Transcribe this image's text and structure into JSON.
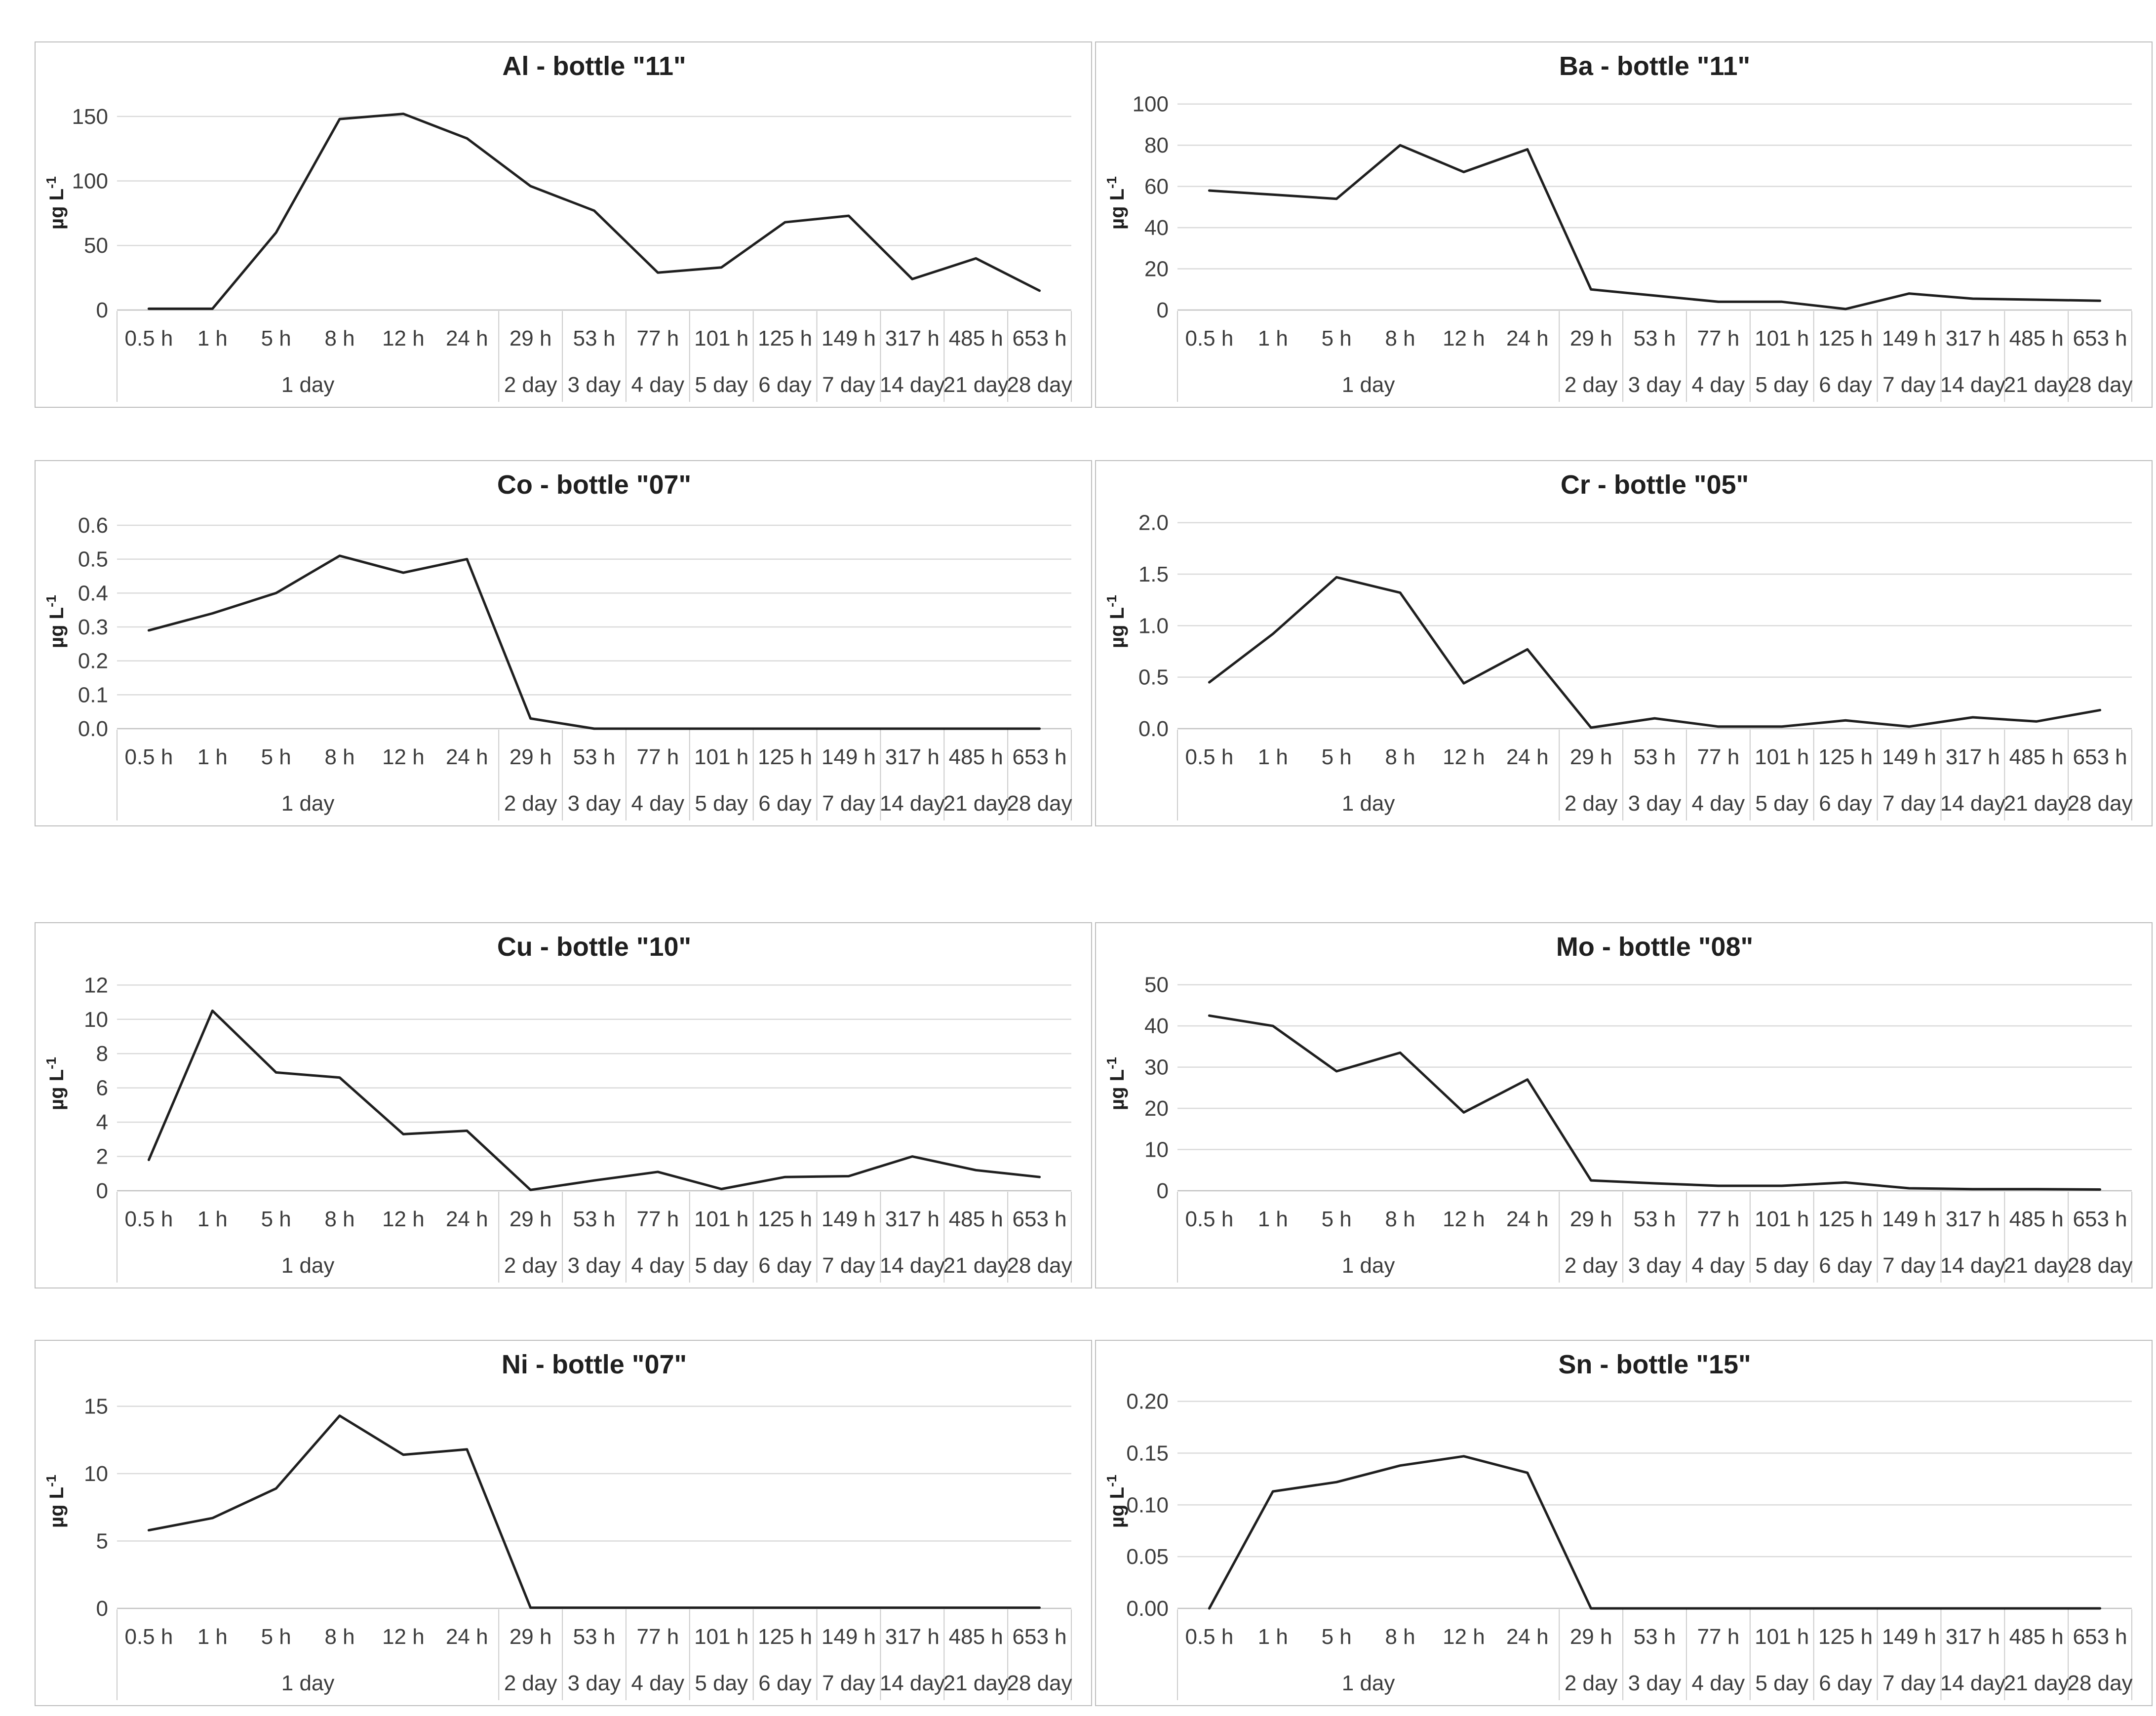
{
  "style": {
    "background": "#ffffff",
    "panel_border_color": "#bdbdbd",
    "line_color": "#1f1f1f",
    "grid_color": "#dadada",
    "axis_line_color": "#c2c2c2",
    "separator_color": "#cccccc",
    "tick_text_color": "#3d3d3d",
    "title_color": "#1f1f1f"
  },
  "axis_shared": {
    "unit_label": "µg L⁻¹",
    "hour_tier_labels": [
      "0.5 h",
      "1 h",
      "5 h",
      "8 h",
      "12 h",
      "24 h",
      "29 h",
      "53 h",
      "77 h",
      "101 h",
      "125 h",
      "149 h",
      "317 h",
      "485 h",
      "653 h"
    ],
    "day_tier_labels": [
      "1 day",
      "2 day",
      "3 day",
      "4 day",
      "5 day",
      "6 day",
      "7 day",
      "14 day",
      "21 day",
      "28 day"
    ]
  },
  "chart_data": [
    {
      "id": "al-bottle-11",
      "type": "line",
      "title": "Al - bottle \"11\"",
      "ylabel": "µg L⁻¹",
      "categories": [
        "0.5 h",
        "1 h",
        "5 h",
        "8 h",
        "12 h",
        "24 h",
        "29 h",
        "53 h",
        "77 h",
        "101 h",
        "125 h",
        "149 h",
        "317 h",
        "485 h",
        "653 h"
      ],
      "categories_tier2": [
        {
          "label": "1 day",
          "span": 6
        },
        {
          "label": "2 day",
          "span": 1
        },
        {
          "label": "3 day",
          "span": 1
        },
        {
          "label": "4 day",
          "span": 1
        },
        {
          "label": "5 day",
          "span": 1
        },
        {
          "label": "6 day",
          "span": 1
        },
        {
          "label": "7 day",
          "span": 1
        },
        {
          "label": "14 day",
          "span": 1
        },
        {
          "label": "21 day",
          "span": 1
        },
        {
          "label": "28 day",
          "span": 1
        }
      ],
      "values": [
        1,
        1,
        60,
        148,
        152,
        133,
        96,
        77,
        29,
        33,
        68,
        73,
        24,
        40,
        15
      ],
      "yticks": [
        0,
        50,
        100,
        150
      ],
      "ytick_labels": [
        "0",
        "50",
        "100",
        "150"
      ],
      "ylim": [
        0,
        166
      ],
      "grid": true,
      "legend": "none"
    },
    {
      "id": "ba-bottle-11",
      "type": "line",
      "title": "Ba - bottle \"11\"",
      "ylabel": "µg L⁻¹",
      "categories": [
        "0.5 h",
        "1 h",
        "5 h",
        "8 h",
        "12 h",
        "24 h",
        "29 h",
        "53 h",
        "77 h",
        "101 h",
        "125 h",
        "149 h",
        "317 h",
        "485 h",
        "653 h"
      ],
      "categories_tier2": [
        {
          "label": "1 day",
          "span": 6
        },
        {
          "label": "2 day",
          "span": 1
        },
        {
          "label": "3 day",
          "span": 1
        },
        {
          "label": "4 day",
          "span": 1
        },
        {
          "label": "5 day",
          "span": 1
        },
        {
          "label": "6 day",
          "span": 1
        },
        {
          "label": "7 day",
          "span": 1
        },
        {
          "label": "14 day",
          "span": 1
        },
        {
          "label": "21 day",
          "span": 1
        },
        {
          "label": "28 day",
          "span": 1
        }
      ],
      "values": [
        58,
        56,
        54,
        80,
        67,
        78,
        10,
        7,
        4,
        4,
        0.5,
        8,
        5.5,
        5,
        4.5
      ],
      "yticks": [
        0,
        20,
        40,
        60,
        80,
        100
      ],
      "ytick_labels": [
        "0",
        "20",
        "40",
        "60",
        "80",
        "100"
      ],
      "ylim": [
        0,
        104
      ],
      "grid": true,
      "legend": "none"
    },
    {
      "id": "co-bottle-07",
      "type": "line",
      "title": "Co - bottle \"07\"",
      "ylabel": "µg L⁻¹",
      "categories": [
        "0.5 h",
        "1 h",
        "5 h",
        "8 h",
        "12 h",
        "24 h",
        "29 h",
        "53 h",
        "77 h",
        "101 h",
        "125 h",
        "149 h",
        "317 h",
        "485 h",
        "653 h"
      ],
      "categories_tier2": [
        {
          "label": "1 day",
          "span": 6
        },
        {
          "label": "2 day",
          "span": 1
        },
        {
          "label": "3 day",
          "span": 1
        },
        {
          "label": "4 day",
          "span": 1
        },
        {
          "label": "5 day",
          "span": 1
        },
        {
          "label": "6 day",
          "span": 1
        },
        {
          "label": "7 day",
          "span": 1
        },
        {
          "label": "14 day",
          "span": 1
        },
        {
          "label": "21 day",
          "span": 1
        },
        {
          "label": "28 day",
          "span": 1
        }
      ],
      "values": [
        0.29,
        0.34,
        0.4,
        0.51,
        0.46,
        0.5,
        0.03,
        0,
        0,
        0,
        0,
        0,
        0,
        0,
        0
      ],
      "yticks": [
        0.0,
        0.1,
        0.2,
        0.3,
        0.4,
        0.5,
        0.6
      ],
      "ytick_labels": [
        "0.0",
        "0.1",
        "0.2",
        "0.3",
        "0.4",
        "0.5",
        "0.6"
      ],
      "ylim": [
        0,
        0.632
      ],
      "grid": true,
      "legend": "none"
    },
    {
      "id": "cr-bottle-05",
      "type": "line",
      "title": "Cr - bottle \"05\"",
      "ylabel": "µg L⁻¹",
      "categories": [
        "0.5 h",
        "1 h",
        "5 h",
        "8 h",
        "12 h",
        "24 h",
        "29 h",
        "53 h",
        "77 h",
        "101 h",
        "125 h",
        "149 h",
        "317 h",
        "485 h",
        "653 h"
      ],
      "categories_tier2": [
        {
          "label": "1 day",
          "span": 6
        },
        {
          "label": "2 day",
          "span": 1
        },
        {
          "label": "3 day",
          "span": 1
        },
        {
          "label": "4 day",
          "span": 1
        },
        {
          "label": "5 day",
          "span": 1
        },
        {
          "label": "6 day",
          "span": 1
        },
        {
          "label": "7 day",
          "span": 1
        },
        {
          "label": "14 day",
          "span": 1
        },
        {
          "label": "21 day",
          "span": 1
        },
        {
          "label": "28 day",
          "span": 1
        }
      ],
      "values": [
        0.45,
        0.92,
        1.47,
        1.32,
        0.44,
        0.77,
        0.01,
        0.1,
        0.02,
        0.02,
        0.08,
        0.02,
        0.11,
        0.07,
        0.18
      ],
      "yticks": [
        0.0,
        0.5,
        1.0,
        1.5,
        2.0
      ],
      "ytick_labels": [
        "0.0",
        "0.5",
        "1.0",
        "1.5",
        "2.0"
      ],
      "ylim": [
        0,
        2.08
      ],
      "grid": true,
      "legend": "none"
    },
    {
      "id": "cu-bottle-10",
      "type": "line",
      "title": "Cu - bottle \"10\"",
      "ylabel": "µg L⁻¹",
      "categories": [
        "0.5 h",
        "1 h",
        "5 h",
        "8 h",
        "12 h",
        "24 h",
        "29 h",
        "53 h",
        "77 h",
        "101 h",
        "125 h",
        "149 h",
        "317 h",
        "485 h",
        "653 h"
      ],
      "categories_tier2": [
        {
          "label": "1 day",
          "span": 6
        },
        {
          "label": "2 day",
          "span": 1
        },
        {
          "label": "3 day",
          "span": 1
        },
        {
          "label": "4 day",
          "span": 1
        },
        {
          "label": "5 day",
          "span": 1
        },
        {
          "label": "6 day",
          "span": 1
        },
        {
          "label": "7 day",
          "span": 1
        },
        {
          "label": "14 day",
          "span": 1
        },
        {
          "label": "21 day",
          "span": 1
        },
        {
          "label": "28 day",
          "span": 1
        }
      ],
      "values": [
        1.8,
        10.5,
        6.9,
        6.6,
        3.3,
        3.5,
        0.05,
        0.6,
        1.1,
        0.1,
        0.8,
        0.85,
        2.0,
        1.2,
        0.8
      ],
      "yticks": [
        0,
        2,
        4,
        6,
        8,
        10,
        12
      ],
      "ytick_labels": [
        "0",
        "2",
        "4",
        "6",
        "8",
        "10",
        "12"
      ],
      "ylim": [
        0,
        12.5
      ],
      "grid": true,
      "legend": "none"
    },
    {
      "id": "mo-bottle-08",
      "type": "line",
      "title": "Mo - bottle \"08\"",
      "ylabel": "µg L⁻¹",
      "categories": [
        "0.5 h",
        "1 h",
        "5 h",
        "8 h",
        "12 h",
        "24 h",
        "29 h",
        "53 h",
        "77 h",
        "101 h",
        "125 h",
        "149 h",
        "317 h",
        "485 h",
        "653 h"
      ],
      "categories_tier2": [
        {
          "label": "1 day",
          "span": 6
        },
        {
          "label": "2 day",
          "span": 1
        },
        {
          "label": "3 day",
          "span": 1
        },
        {
          "label": "4 day",
          "span": 1
        },
        {
          "label": "5 day",
          "span": 1
        },
        {
          "label": "6 day",
          "span": 1
        },
        {
          "label": "7 day",
          "span": 1
        },
        {
          "label": "14 day",
          "span": 1
        },
        {
          "label": "21 day",
          "span": 1
        },
        {
          "label": "28 day",
          "span": 1
        }
      ],
      "values": [
        42.5,
        40,
        29,
        33.5,
        19,
        27,
        2.5,
        1.8,
        1.2,
        1.2,
        2.0,
        0.6,
        0.4,
        0.4,
        0.3
      ],
      "yticks": [
        0,
        10,
        20,
        30,
        40,
        50
      ],
      "ytick_labels": [
        "0",
        "10",
        "20",
        "30",
        "40",
        "50"
      ],
      "ylim": [
        0,
        52
      ],
      "grid": true,
      "legend": "none"
    },
    {
      "id": "ni-bottle-07",
      "type": "line",
      "title": "Ni - bottle \"07\"",
      "ylabel": "µg L⁻¹",
      "categories": [
        "0.5 h",
        "1 h",
        "5 h",
        "8 h",
        "12 h",
        "24 h",
        "29 h",
        "53 h",
        "77 h",
        "101 h",
        "125 h",
        "149 h",
        "317 h",
        "485 h",
        "653 h"
      ],
      "categories_tier2": [
        {
          "label": "1 day",
          "span": 6
        },
        {
          "label": "2 day",
          "span": 1
        },
        {
          "label": "3 day",
          "span": 1
        },
        {
          "label": "4 day",
          "span": 1
        },
        {
          "label": "5 day",
          "span": 1
        },
        {
          "label": "6 day",
          "span": 1
        },
        {
          "label": "7 day",
          "span": 1
        },
        {
          "label": "14 day",
          "span": 1
        },
        {
          "label": "21 day",
          "span": 1
        },
        {
          "label": "28 day",
          "span": 1
        }
      ],
      "values": [
        5.8,
        6.7,
        8.9,
        14.3,
        11.4,
        11.8,
        0.05,
        0.05,
        0.05,
        0.05,
        0.05,
        0.05,
        0.05,
        0.05,
        0.05
      ],
      "yticks": [
        0,
        5,
        10,
        15
      ],
      "ytick_labels": [
        "0",
        "5",
        "10",
        "15"
      ],
      "ylim": [
        0,
        15.9
      ],
      "grid": true,
      "legend": "none"
    },
    {
      "id": "sn-bottle-15",
      "type": "line",
      "title": "Sn - bottle \"15\"",
      "ylabel": "µg L⁻¹",
      "categories": [
        "0.5 h",
        "1 h",
        "5 h",
        "8 h",
        "12 h",
        "24 h",
        "29 h",
        "53 h",
        "77 h",
        "101 h",
        "125 h",
        "149 h",
        "317 h",
        "485 h",
        "653 h"
      ],
      "categories_tier2": [
        {
          "label": "1 day",
          "span": 6
        },
        {
          "label": "2 day",
          "span": 1
        },
        {
          "label": "3 day",
          "span": 1
        },
        {
          "label": "4 day",
          "span": 1
        },
        {
          "label": "5 day",
          "span": 1
        },
        {
          "label": "6 day",
          "span": 1
        },
        {
          "label": "7 day",
          "span": 1
        },
        {
          "label": "14 day",
          "span": 1
        },
        {
          "label": "21 day",
          "span": 1
        },
        {
          "label": "28 day",
          "span": 1
        }
      ],
      "values": [
        0,
        0.113,
        0.122,
        0.138,
        0.147,
        0.131,
        0,
        0,
        0,
        0,
        0,
        0,
        0,
        0,
        0
      ],
      "yticks": [
        0.0,
        0.05,
        0.1,
        0.15,
        0.2
      ],
      "ytick_labels": [
        "0.00",
        "0.05",
        "0.10",
        "0.15",
        "0.20"
      ],
      "ylim": [
        0,
        0.207
      ],
      "grid": true,
      "legend": "none"
    }
  ]
}
